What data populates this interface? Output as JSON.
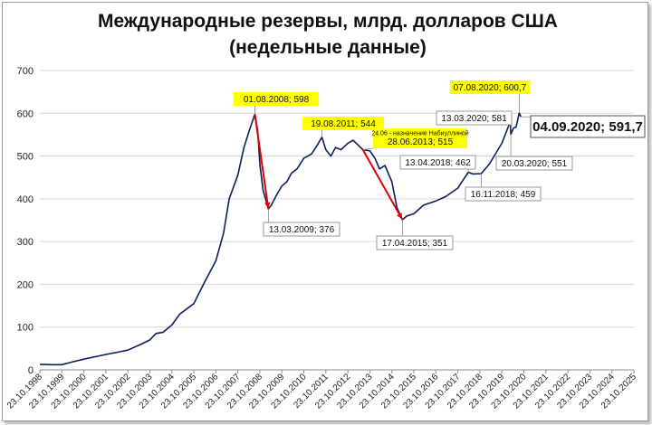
{
  "chart_data": {
    "type": "line",
    "title": "Международные резервы, млрд. долларов США",
    "subtitle": "(недельные данные)",
    "xlabel": "",
    "ylabel": "",
    "ylim": [
      0,
      700
    ],
    "yticks": [
      "0",
      "100",
      "200",
      "300",
      "400",
      "500",
      "600",
      "700"
    ],
    "yticks_values": [
      0,
      100,
      200,
      300,
      400,
      500,
      600,
      700
    ],
    "x_range": [
      "1998-10-23",
      "2025-10-23"
    ],
    "xticks": [
      "23.10.1998",
      "23.10.1999",
      "23.10.2000",
      "23.10.2001",
      "23.10.2002",
      "23.10.2003",
      "23.10.2004",
      "23.10.2005",
      "23.10.2006",
      "23.10.2007",
      "23.10.2008",
      "23.10.2009",
      "23.10.2010",
      "23.10.2011",
      "23.10.2012",
      "23.10.2013",
      "23.10.2014",
      "23.10.2015",
      "23.10.2016",
      "23.10.2017",
      "23.10.2018",
      "23.10.2019",
      "23.10.2020",
      "23.10.2021",
      "23.10.2022",
      "23.10.2023",
      "23.10.2024",
      "23.10.2025"
    ],
    "grid": "horizontal",
    "series": [
      {
        "color": "#0d1f5c",
        "points": [
          [
            "1998-10-23",
            13
          ],
          [
            "1999-06-01",
            12
          ],
          [
            "1999-10-23",
            12
          ],
          [
            "2000-04-01",
            18
          ],
          [
            "2000-10-23",
            25
          ],
          [
            "2001-10-23",
            36
          ],
          [
            "2002-06-01",
            42
          ],
          [
            "2002-10-23",
            46
          ],
          [
            "2003-06-01",
            60
          ],
          [
            "2003-10-23",
            70
          ],
          [
            "2004-02-01",
            85
          ],
          [
            "2004-06-01",
            88
          ],
          [
            "2004-10-23",
            105
          ],
          [
            "2005-03-01",
            130
          ],
          [
            "2005-10-23",
            155
          ],
          [
            "2006-04-01",
            200
          ],
          [
            "2006-10-23",
            255
          ],
          [
            "2007-03-01",
            320
          ],
          [
            "2007-06-01",
            400
          ],
          [
            "2007-10-23",
            455
          ],
          [
            "2008-02-01",
            520
          ],
          [
            "2008-05-01",
            560
          ],
          [
            "2008-08-01",
            598
          ],
          [
            "2008-09-15",
            560
          ],
          [
            "2008-10-23",
            480
          ],
          [
            "2008-12-15",
            420
          ],
          [
            "2009-03-13",
            376
          ],
          [
            "2009-05-01",
            385
          ],
          [
            "2009-08-01",
            410
          ],
          [
            "2009-10-23",
            430
          ],
          [
            "2010-01-15",
            440
          ],
          [
            "2010-04-01",
            460
          ],
          [
            "2010-07-01",
            470
          ],
          [
            "2010-10-23",
            495
          ],
          [
            "2011-03-01",
            505
          ],
          [
            "2011-06-01",
            525
          ],
          [
            "2011-08-19",
            544
          ],
          [
            "2011-10-23",
            515
          ],
          [
            "2012-01-15",
            500
          ],
          [
            "2012-04-01",
            520
          ],
          [
            "2012-07-01",
            515
          ],
          [
            "2012-10-23",
            530
          ],
          [
            "2013-01-15",
            537
          ],
          [
            "2013-04-01",
            527
          ],
          [
            "2013-06-28",
            515
          ],
          [
            "2013-10-23",
            512
          ],
          [
            "2014-01-15",
            495
          ],
          [
            "2014-04-01",
            470
          ],
          [
            "2014-07-01",
            478
          ],
          [
            "2014-10-23",
            440
          ],
          [
            "2015-01-15",
            380
          ],
          [
            "2015-04-17",
            351
          ],
          [
            "2015-07-01",
            360
          ],
          [
            "2015-10-23",
            365
          ],
          [
            "2016-04-01",
            385
          ],
          [
            "2016-10-23",
            395
          ],
          [
            "2017-04-01",
            405
          ],
          [
            "2017-10-23",
            425
          ],
          [
            "2018-04-13",
            462
          ],
          [
            "2018-07-01",
            458
          ],
          [
            "2018-11-16",
            459
          ],
          [
            "2019-04-01",
            482
          ],
          [
            "2019-10-23",
            530
          ],
          [
            "2020-03-13",
            581
          ],
          [
            "2020-03-20",
            551
          ],
          [
            "2020-05-01",
            565
          ],
          [
            "2020-06-15",
            568
          ],
          [
            "2020-08-07",
            600.7
          ],
          [
            "2020-09-04",
            591.7
          ]
        ]
      }
    ],
    "annotations": [
      {
        "label": "01.08.2008; 598",
        "x": "2008-08-01",
        "y": 598,
        "style": "yellow"
      },
      {
        "label": "13.03.2009; 376",
        "x": "2009-03-13",
        "y": 376,
        "style": "box"
      },
      {
        "label": "19.08.2011; 544",
        "x": "2011-08-19",
        "y": 544,
        "style": "yellow"
      },
      {
        "label": "28.06.2013; 515",
        "note": "24.06 - назначение Набиуллиной",
        "x": "2013-06-28",
        "y": 515,
        "style": "yellow"
      },
      {
        "label": "17.04.2015; 351",
        "x": "2015-04-17",
        "y": 351,
        "style": "box"
      },
      {
        "label": "13.04.2018; 462",
        "x": "2018-04-13",
        "y": 462,
        "style": "box"
      },
      {
        "label": "16.11.2018; 459",
        "x": "2018-11-16",
        "y": 459,
        "style": "box"
      },
      {
        "label": "13.03.2020; 581",
        "x": "2020-03-13",
        "y": 581,
        "style": "box"
      },
      {
        "label": "20.03.2020; 551",
        "x": "2020-03-20",
        "y": 551,
        "style": "box"
      },
      {
        "label": "07.08.2020; 600,7",
        "x": "2020-08-07",
        "y": 600.7,
        "style": "yellow"
      },
      {
        "label": "04.09.2020; 591,7",
        "x": "2020-09-04",
        "y": 591.7,
        "style": "big"
      }
    ],
    "arrows": [
      {
        "from": [
          "2008-08-01",
          598
        ],
        "to": [
          "2009-03-13",
          376
        ],
        "color": "#e00000"
      },
      {
        "from": [
          "2013-06-28",
          515
        ],
        "to": [
          "2015-04-17",
          351
        ],
        "color": "#e00000"
      }
    ]
  }
}
